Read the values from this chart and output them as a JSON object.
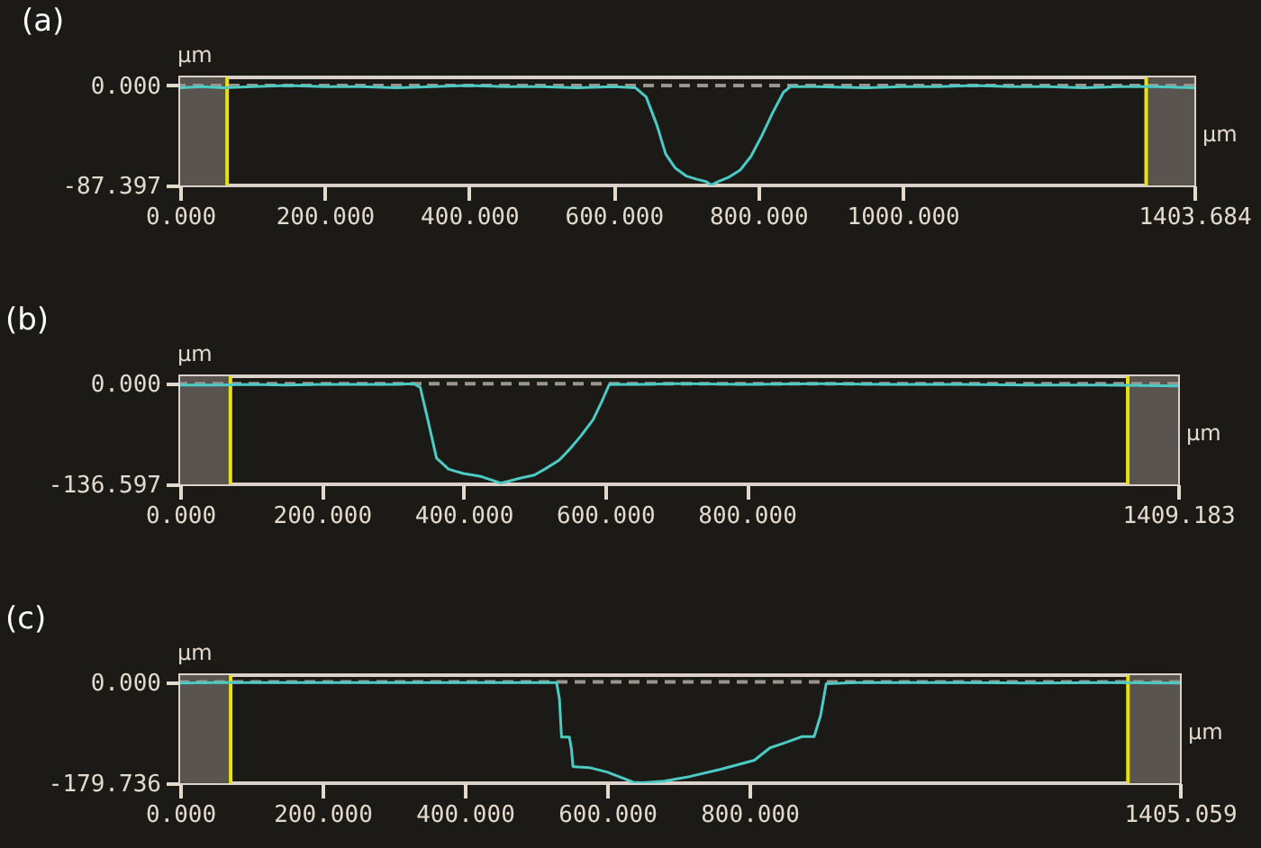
{
  "chart_data": [
    {
      "type": "line",
      "title": "(a)",
      "xlabel": "µm",
      "ylabel": "µm",
      "x": [
        0,
        30,
        60,
        100,
        150,
        200,
        250,
        300,
        350,
        400,
        450,
        500,
        550,
        600,
        630,
        645,
        660,
        672,
        685,
        700,
        715,
        728,
        735,
        745,
        760,
        775,
        790,
        805,
        820,
        835,
        845,
        880,
        950,
        1000,
        1050,
        1100,
        1150,
        1200,
        1250,
        1300,
        1350,
        1403
      ],
      "series": [
        {
          "color": "#4ccac4",
          "values": [
            -2,
            -1,
            -2,
            -1,
            0,
            -1,
            -1,
            -2,
            -1,
            0,
            -1,
            -1,
            -2,
            -1,
            -2,
            -10,
            -35,
            -60,
            -72,
            -79,
            -82,
            -84,
            -87,
            -84,
            -80,
            -74,
            -62,
            -44,
            -24,
            -6,
            -1,
            -1,
            -2,
            -1,
            -1,
            0,
            -1,
            -1,
            -2,
            -1,
            -1,
            -2
          ]
        }
      ],
      "xlim": [
        0,
        1403.684
      ],
      "ylim": [
        -87.397,
        7
      ],
      "xticks": [
        {
          "value": 0,
          "label": "0.000"
        },
        {
          "value": 200,
          "label": "200.000"
        },
        {
          "value": 400,
          "label": "400.000"
        },
        {
          "value": 600,
          "label": "600.000"
        },
        {
          "value": 800,
          "label": "800.000"
        },
        {
          "value": 1000,
          "label": "1000.000"
        },
        {
          "value": 1403.684,
          "label": "1403.684"
        }
      ],
      "yticks": [
        {
          "value": -87.397,
          "label": "-87.397"
        },
        {
          "value": 0,
          "label": "0.000"
        }
      ],
      "bands": [
        {
          "axis": "x",
          "from": 0,
          "to": 65,
          "color": "#5a5450"
        },
        {
          "axis": "x",
          "from": 1337,
          "to": 1403.684,
          "color": "#5a5450"
        }
      ],
      "ref_lines": [
        {
          "axis": "y",
          "value": 0,
          "color": "#9a948e",
          "line_style": "dashed"
        },
        {
          "axis": "x",
          "value": 65,
          "color": "#e8e010"
        },
        {
          "axis": "x",
          "value": 1337,
          "color": "#e8e010"
        }
      ],
      "grid": false
    },
    {
      "type": "line",
      "title": "(b)",
      "xlabel": "µm",
      "ylabel": "µm",
      "x": [
        0,
        50,
        100,
        150,
        200,
        250,
        300,
        330,
        339,
        350,
        362,
        379,
        400,
        425,
        453,
        481,
        500,
        515,
        535,
        550,
        565,
        583,
        595,
        606,
        650,
        700,
        800,
        900,
        1000,
        1100,
        1200,
        1300,
        1409
      ],
      "series": [
        {
          "color": "#4ccac4",
          "values": [
            -2,
            -2,
            -1,
            -2,
            -1,
            -1,
            -1,
            0,
            -5,
            -50,
            -101,
            -116,
            -122,
            -126,
            -135,
            -128,
            -124,
            -116,
            -104,
            -89,
            -72,
            -49,
            -25,
            -1,
            -1,
            0,
            -1,
            0,
            -1,
            -1,
            -2,
            -2,
            -3
          ]
        }
      ],
      "xlim": [
        0,
        1409.183
      ],
      "ylim": [
        -136.597,
        10
      ],
      "xticks": [
        {
          "value": 0,
          "label": "0.000"
        },
        {
          "value": 200,
          "label": "200.000"
        },
        {
          "value": 400,
          "label": "400.000"
        },
        {
          "value": 600,
          "label": "600.000"
        },
        {
          "value": 800,
          "label": "800.000"
        },
        {
          "value": 1409.183,
          "label": "1409.183"
        }
      ],
      "yticks": [
        {
          "value": -136.597,
          "label": "-136.597"
        },
        {
          "value": 0,
          "label": "0.000"
        }
      ],
      "bands": [
        {
          "axis": "x",
          "from": 0,
          "to": 71,
          "color": "#5a5450"
        },
        {
          "axis": "x",
          "from": 1338,
          "to": 1409.183,
          "color": "#5a5450"
        }
      ],
      "ref_lines": [
        {
          "axis": "y",
          "value": 0,
          "color": "#9a948e",
          "line_style": "dashed"
        },
        {
          "axis": "x",
          "value": 71,
          "color": "#e8e010"
        },
        {
          "axis": "x",
          "value": 1338,
          "color": "#e8e010"
        }
      ],
      "grid": false
    },
    {
      "type": "line",
      "title": "(c)",
      "xlabel": "µm",
      "ylabel": "µm",
      "x": [
        0,
        50,
        100,
        200,
        300,
        400,
        500,
        529,
        533,
        536,
        547,
        550,
        552,
        560,
        575,
        600,
        637,
        650,
        680,
        716,
        760,
        807,
        829,
        850,
        874,
        891,
        900,
        908,
        950,
        1000,
        1100,
        1200,
        1300,
        1405
      ],
      "series": [
        {
          "color": "#4ccac4",
          "values": [
            -2,
            -1,
            -1,
            -1,
            -1,
            -1,
            -1,
            -1,
            -30,
            -98,
            -98,
            -120,
            -150,
            -151,
            -152,
            -160,
            -178,
            -179,
            -176,
            -168,
            -155,
            -139,
            -117,
            -108,
            -97,
            -97,
            -60,
            -3,
            -1,
            -1,
            -1,
            -2,
            -1,
            -2
          ]
        }
      ],
      "xlim": [
        0,
        1405.059
      ],
      "ylim": [
        -179.736,
        12
      ],
      "xticks": [
        {
          "value": 0,
          "label": "0.000"
        },
        {
          "value": 200,
          "label": "200.000"
        },
        {
          "value": 400,
          "label": "400.000"
        },
        {
          "value": 600,
          "label": "600.000"
        },
        {
          "value": 800,
          "label": "800.000"
        },
        {
          "value": 1405.059,
          "label": "1405.059"
        }
      ],
      "yticks": [
        {
          "value": -179.736,
          "label": "-179.736"
        },
        {
          "value": 0,
          "label": "0.000"
        }
      ],
      "bands": [
        {
          "axis": "x",
          "from": 0,
          "to": 71,
          "color": "#5a5450"
        },
        {
          "axis": "x",
          "from": 1332,
          "to": 1405.059,
          "color": "#5a5450"
        }
      ],
      "ref_lines": [
        {
          "axis": "y",
          "value": 0,
          "color": "#9a948e",
          "line_style": "dashed"
        },
        {
          "axis": "x",
          "value": 71,
          "color": "#e8e010"
        },
        {
          "axis": "x",
          "value": 1332,
          "color": "#e8e010"
        }
      ],
      "grid": false
    }
  ]
}
